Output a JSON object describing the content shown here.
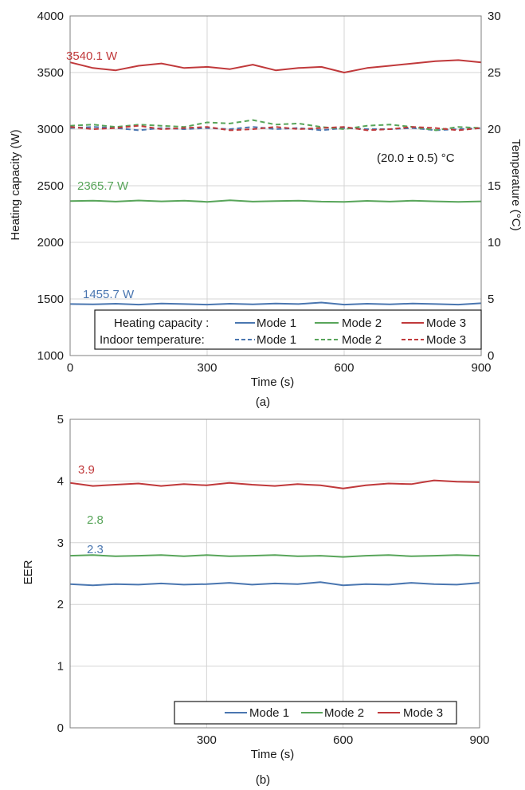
{
  "colors": {
    "mode1": "#4a76b0",
    "mode2": "#58a55a",
    "mode3": "#c0393b",
    "grid": "#d4d4d4",
    "axis": "#7f7f7f"
  },
  "chart_data": [
    {
      "type": "line",
      "panel_label": "(a)",
      "xlabel": "Time (s)",
      "ylabel": "Heating capacity (W)",
      "y2label": "Temperature (°C)",
      "xlim": [
        0,
        900
      ],
      "ylim": [
        1000,
        4000
      ],
      "y2lim": [
        0,
        30
      ],
      "xticks": [
        "0",
        "300",
        "600",
        "900"
      ],
      "yticks": [
        "1000",
        "1500",
        "2000",
        "2500",
        "3000",
        "3500",
        "4000"
      ],
      "y2ticks": [
        "0",
        "5",
        "10",
        "15",
        "20",
        "25",
        "30"
      ],
      "grid": true,
      "legend_position": "bottom-right",
      "legend_rows": [
        "Heating capacity :",
        "Indoor temperature:"
      ],
      "series": [
        {
          "name": "Mode 1",
          "group": "Heating capacity",
          "axis": "left",
          "style": "solid",
          "x": [
            0,
            50,
            100,
            150,
            200,
            250,
            300,
            350,
            400,
            450,
            500,
            550,
            600,
            650,
            700,
            750,
            800,
            850,
            900
          ],
          "y": [
            1455,
            1452,
            1458,
            1450,
            1460,
            1455,
            1450,
            1458,
            1453,
            1460,
            1455,
            1468,
            1450,
            1458,
            1452,
            1460,
            1455,
            1450,
            1462
          ]
        },
        {
          "name": "Mode 2",
          "group": "Heating capacity",
          "axis": "left",
          "style": "solid",
          "x": [
            0,
            50,
            100,
            150,
            200,
            250,
            300,
            350,
            400,
            450,
            500,
            550,
            600,
            650,
            700,
            750,
            800,
            850,
            900
          ],
          "y": [
            2365,
            2368,
            2360,
            2370,
            2362,
            2368,
            2358,
            2372,
            2360,
            2365,
            2368,
            2360,
            2358,
            2366,
            2360,
            2368,
            2362,
            2358,
            2362
          ]
        },
        {
          "name": "Mode 3",
          "group": "Heating capacity",
          "axis": "left",
          "style": "solid",
          "x": [
            0,
            50,
            100,
            150,
            200,
            250,
            300,
            350,
            400,
            450,
            500,
            550,
            600,
            650,
            700,
            750,
            800,
            850,
            900
          ],
          "y": [
            3590,
            3540,
            3520,
            3560,
            3580,
            3540,
            3550,
            3530,
            3570,
            3520,
            3540,
            3550,
            3500,
            3540,
            3560,
            3580,
            3600,
            3610,
            3590
          ]
        },
        {
          "name": "Mode 1",
          "group": "Indoor temperature",
          "axis": "right",
          "style": "dashed",
          "x": [
            0,
            50,
            100,
            150,
            200,
            250,
            300,
            350,
            400,
            450,
            500,
            550,
            600,
            650,
            700,
            750,
            800,
            850,
            900
          ],
          "y": [
            20.1,
            20.2,
            20.1,
            19.9,
            20.1,
            20.0,
            20.1,
            20.0,
            20.2,
            20.0,
            20.1,
            19.9,
            20.1,
            20.0,
            20.0,
            20.1,
            19.9,
            20.0,
            20.1
          ]
        },
        {
          "name": "Mode 2",
          "group": "Indoor temperature",
          "axis": "right",
          "style": "dashed",
          "x": [
            0,
            50,
            100,
            150,
            200,
            250,
            300,
            350,
            400,
            450,
            500,
            550,
            600,
            650,
            700,
            750,
            800,
            850,
            900
          ],
          "y": [
            20.3,
            20.4,
            20.2,
            20.4,
            20.3,
            20.2,
            20.6,
            20.5,
            20.8,
            20.4,
            20.5,
            20.2,
            20.0,
            20.3,
            20.4,
            20.2,
            19.9,
            20.2,
            20.1
          ]
        },
        {
          "name": "Mode 3",
          "group": "Indoor temperature",
          "axis": "right",
          "style": "dashed",
          "x": [
            0,
            50,
            100,
            150,
            200,
            250,
            300,
            350,
            400,
            450,
            500,
            550,
            600,
            650,
            700,
            750,
            800,
            850,
            900
          ],
          "y": [
            20.2,
            20.0,
            20.1,
            20.3,
            20.0,
            20.1,
            20.2,
            19.9,
            20.0,
            20.2,
            20.0,
            20.1,
            20.2,
            19.9,
            20.0,
            20.2,
            20.1,
            19.9,
            20.1
          ]
        }
      ],
      "annotations": {
        "mode3_value": "3540.1 W",
        "mode2_value": "2365.7 W",
        "mode1_value": "1455.7 W",
        "temperature_range": "(20.0 ± 0.5) °C"
      }
    },
    {
      "type": "line",
      "panel_label": "(b)",
      "xlabel": "Time (s)",
      "ylabel": "EER",
      "xlim": [
        0,
        900
      ],
      "ylim": [
        0,
        5
      ],
      "xticks": [
        "300",
        "600",
        "900"
      ],
      "yticks": [
        "0",
        "1",
        "2",
        "3",
        "4",
        "5"
      ],
      "grid": true,
      "legend_position": "bottom-right",
      "series": [
        {
          "name": "Mode 1",
          "x": [
            0,
            50,
            100,
            150,
            200,
            250,
            300,
            350,
            400,
            450,
            500,
            550,
            600,
            650,
            700,
            750,
            800,
            850,
            900
          ],
          "y": [
            2.33,
            2.31,
            2.33,
            2.32,
            2.34,
            2.32,
            2.33,
            2.35,
            2.32,
            2.34,
            2.33,
            2.36,
            2.31,
            2.33,
            2.32,
            2.35,
            2.33,
            2.32,
            2.35
          ]
        },
        {
          "name": "Mode 2",
          "x": [
            0,
            50,
            100,
            150,
            200,
            250,
            300,
            350,
            400,
            450,
            500,
            550,
            600,
            650,
            700,
            750,
            800,
            850,
            900
          ],
          "y": [
            2.79,
            2.8,
            2.78,
            2.79,
            2.8,
            2.78,
            2.8,
            2.78,
            2.79,
            2.8,
            2.78,
            2.79,
            2.77,
            2.79,
            2.8,
            2.78,
            2.79,
            2.8,
            2.79
          ]
        },
        {
          "name": "Mode 3",
          "x": [
            0,
            50,
            100,
            150,
            200,
            250,
            300,
            350,
            400,
            450,
            500,
            550,
            600,
            650,
            700,
            750,
            800,
            850,
            900
          ],
          "y": [
            3.97,
            3.92,
            3.94,
            3.96,
            3.92,
            3.95,
            3.93,
            3.97,
            3.94,
            3.92,
            3.95,
            3.93,
            3.88,
            3.93,
            3.96,
            3.95,
            4.01,
            3.99,
            3.98
          ]
        }
      ],
      "annotations": {
        "mode3_value": "3.9",
        "mode2_value": "2.8",
        "mode1_value": "2.3"
      }
    }
  ]
}
